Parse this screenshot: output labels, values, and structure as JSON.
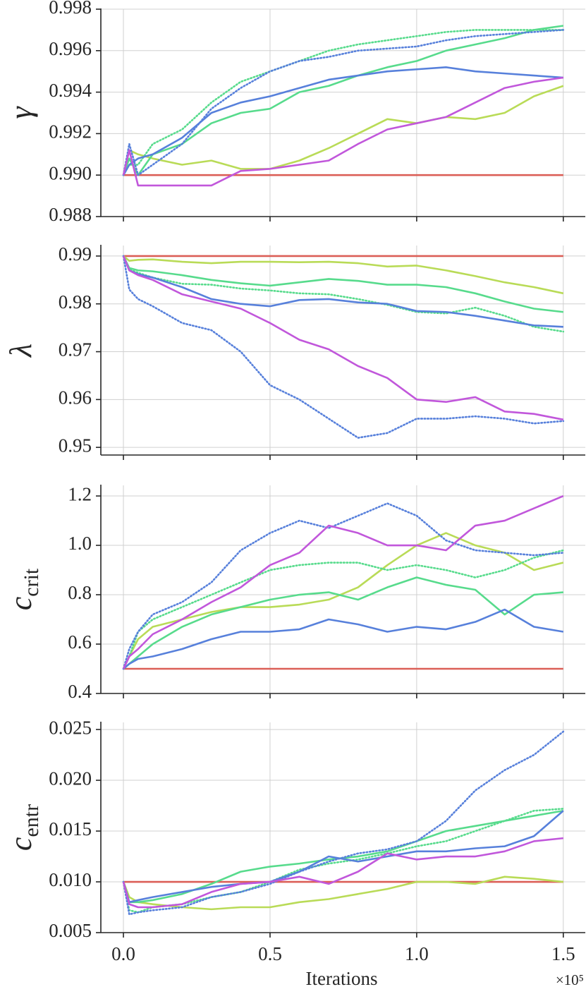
{
  "chart_data": [
    {
      "type": "line",
      "ylabel": "γ",
      "grid": true,
      "x": [
        0,
        0.02,
        0.05,
        0.1,
        0.2,
        0.3,
        0.4,
        0.5,
        0.6,
        0.7,
        0.8,
        0.9,
        1.0,
        1.1,
        1.2,
        1.3,
        1.4,
        1.5
      ],
      "xlim": [
        -0.077,
        1.575
      ],
      "xticks": [
        0,
        0.5,
        1,
        1.5
      ],
      "ylim": [
        0.988,
        0.998
      ],
      "yticks": [
        0.988,
        {
          "value": 0.99,
          "label": "0.990"
        },
        0.992,
        0.994,
        0.996,
        0.998
      ],
      "series": [
        {
          "color": "#db5f57",
          "linestyle": "solid",
          "values": [
            0.99,
            0.99,
            0.99,
            0.99,
            0.99,
            0.99,
            0.99,
            0.99,
            0.99,
            0.99,
            0.99,
            0.99,
            0.99,
            0.99,
            0.99,
            0.99,
            0.99,
            0.99
          ]
        },
        {
          "color": "#b9db57",
          "linestyle": "solid",
          "values": [
            0.99,
            0.9912,
            0.991,
            0.9908,
            0.9905,
            0.9907,
            0.9903,
            0.9903,
            0.9907,
            0.9913,
            0.992,
            0.9927,
            0.9925,
            0.9928,
            0.9927,
            0.993,
            0.9938,
            0.9943
          ]
        },
        {
          "color": "#57db8c",
          "linestyle": "solid",
          "values": [
            0.99,
            0.9908,
            0.99,
            0.991,
            0.9915,
            0.9925,
            0.993,
            0.9932,
            0.994,
            0.9943,
            0.9948,
            0.9952,
            0.9955,
            0.996,
            0.9963,
            0.9966,
            0.997,
            0.9972
          ]
        },
        {
          "color": "#57db8c",
          "linestyle": "dotted",
          "values": [
            0.99,
            0.9905,
            0.9905,
            0.9915,
            0.9922,
            0.9935,
            0.9945,
            0.995,
            0.9955,
            0.996,
            0.9963,
            0.9965,
            0.9967,
            0.9969,
            0.997,
            0.997,
            0.997,
            0.997
          ]
        },
        {
          "color": "#5780db",
          "linestyle": "solid",
          "values": [
            0.99,
            0.9905,
            0.9908,
            0.991,
            0.9918,
            0.993,
            0.9935,
            0.9938,
            0.9942,
            0.9946,
            0.9948,
            0.995,
            0.9951,
            0.9952,
            0.995,
            0.9949,
            0.9948,
            0.9947
          ]
        },
        {
          "color": "#5780db",
          "linestyle": "dotted",
          "values": [
            0.99,
            0.9915,
            0.99,
            0.9905,
            0.9915,
            0.9932,
            0.9942,
            0.995,
            0.9955,
            0.9957,
            0.996,
            0.9961,
            0.9962,
            0.9965,
            0.9967,
            0.9968,
            0.9969,
            0.997
          ]
        },
        {
          "color": "#c157db",
          "linestyle": "solid",
          "values": [
            0.99,
            0.9912,
            0.9895,
            0.9895,
            0.9895,
            0.9895,
            0.9902,
            0.9903,
            0.9905,
            0.9907,
            0.9915,
            0.9922,
            0.9925,
            0.9928,
            0.9935,
            0.9942,
            0.9945,
            0.9947
          ]
        }
      ]
    },
    {
      "type": "line",
      "ylabel": "λ",
      "grid": true,
      "x": [
        0,
        0.02,
        0.05,
        0.1,
        0.2,
        0.3,
        0.4,
        0.5,
        0.6,
        0.7,
        0.8,
        0.9,
        1.0,
        1.1,
        1.2,
        1.3,
        1.4,
        1.5
      ],
      "xlim": [
        -0.077,
        1.575
      ],
      "xticks": [
        0,
        0.5,
        1,
        1.5
      ],
      "ylim": [
        0.9484,
        0.9922
      ],
      "yticks": [
        0.95,
        0.96,
        0.97,
        0.98,
        0.99
      ],
      "series": [
        {
          "color": "#db5f57",
          "linestyle": "solid",
          "values": [
            0.99,
            0.99,
            0.99,
            0.99,
            0.99,
            0.99,
            0.99,
            0.99,
            0.99,
            0.99,
            0.99,
            0.99,
            0.99,
            0.99,
            0.99,
            0.99,
            0.99,
            0.99
          ]
        },
        {
          "color": "#b9db57",
          "linestyle": "solid",
          "values": [
            0.99,
            0.989,
            0.9892,
            0.9893,
            0.9888,
            0.9885,
            0.9888,
            0.9888,
            0.9887,
            0.9888,
            0.9885,
            0.9878,
            0.988,
            0.987,
            0.9858,
            0.9845,
            0.9835,
            0.9822
          ]
        },
        {
          "color": "#57db8c",
          "linestyle": "solid",
          "values": [
            0.99,
            0.9875,
            0.987,
            0.9868,
            0.986,
            0.985,
            0.9843,
            0.9838,
            0.9845,
            0.9852,
            0.9848,
            0.984,
            0.984,
            0.9835,
            0.9822,
            0.9805,
            0.979,
            0.9783
          ]
        },
        {
          "color": "#57db8c",
          "linestyle": "dotted",
          "values": [
            0.99,
            0.9872,
            0.9865,
            0.9855,
            0.9842,
            0.984,
            0.9832,
            0.9828,
            0.9822,
            0.982,
            0.981,
            0.9798,
            0.9783,
            0.978,
            0.9792,
            0.9775,
            0.9752,
            0.9742
          ]
        },
        {
          "color": "#5780db",
          "linestyle": "solid",
          "values": [
            0.99,
            0.987,
            0.9862,
            0.9855,
            0.9835,
            0.981,
            0.98,
            0.9795,
            0.9808,
            0.981,
            0.9803,
            0.98,
            0.9785,
            0.9783,
            0.9775,
            0.9765,
            0.9755,
            0.9752
          ]
        },
        {
          "color": "#5780db",
          "linestyle": "dotted",
          "values": [
            0.99,
            0.983,
            0.981,
            0.9795,
            0.976,
            0.9745,
            0.97,
            0.963,
            0.96,
            0.956,
            0.952,
            0.953,
            0.956,
            0.956,
            0.9565,
            0.956,
            0.955,
            0.9555
          ]
        },
        {
          "color": "#c157db",
          "linestyle": "solid",
          "values": [
            0.99,
            0.987,
            0.986,
            0.985,
            0.982,
            0.9805,
            0.979,
            0.976,
            0.9725,
            0.9705,
            0.967,
            0.9645,
            0.96,
            0.9595,
            0.9605,
            0.9575,
            0.957,
            0.9558
          ]
        }
      ]
    },
    {
      "type": "line",
      "ylabel": "c",
      "ylabel_sub": "crit",
      "grid": true,
      "x": [
        0,
        0.02,
        0.05,
        0.1,
        0.2,
        0.3,
        0.4,
        0.5,
        0.6,
        0.7,
        0.8,
        0.9,
        1.0,
        1.1,
        1.2,
        1.3,
        1.4,
        1.5
      ],
      "xlim": [
        -0.077,
        1.575
      ],
      "xticks": [
        0,
        0.5,
        1,
        1.5
      ],
      "ylim": [
        0.4,
        1.243
      ],
      "yticks": [
        0.4,
        0.6,
        0.8,
        {
          "value": 1,
          "label": "1.0"
        },
        1.2
      ],
      "series": [
        {
          "color": "#db5f57",
          "linestyle": "solid",
          "values": [
            0.5,
            0.5,
            0.5,
            0.5,
            0.5,
            0.5,
            0.5,
            0.5,
            0.5,
            0.5,
            0.5,
            0.5,
            0.5,
            0.5,
            0.5,
            0.5,
            0.5,
            0.5
          ]
        },
        {
          "color": "#b9db57",
          "linestyle": "solid",
          "values": [
            0.5,
            0.55,
            0.62,
            0.67,
            0.7,
            0.73,
            0.75,
            0.75,
            0.76,
            0.78,
            0.83,
            0.92,
            1.0,
            1.05,
            1.0,
            0.97,
            0.9,
            0.93
          ]
        },
        {
          "color": "#57db8c",
          "linestyle": "solid",
          "values": [
            0.5,
            0.52,
            0.55,
            0.6,
            0.67,
            0.72,
            0.75,
            0.78,
            0.8,
            0.81,
            0.78,
            0.83,
            0.87,
            0.84,
            0.82,
            0.72,
            0.8,
            0.81
          ]
        },
        {
          "color": "#57db8c",
          "linestyle": "dotted",
          "values": [
            0.5,
            0.55,
            0.65,
            0.7,
            0.75,
            0.8,
            0.85,
            0.9,
            0.92,
            0.93,
            0.93,
            0.9,
            0.92,
            0.9,
            0.87,
            0.9,
            0.95,
            0.98
          ]
        },
        {
          "color": "#5780db",
          "linestyle": "solid",
          "values": [
            0.5,
            0.52,
            0.54,
            0.55,
            0.58,
            0.62,
            0.65,
            0.65,
            0.66,
            0.7,
            0.68,
            0.65,
            0.67,
            0.66,
            0.69,
            0.74,
            0.67,
            0.65
          ]
        },
        {
          "color": "#5780db",
          "linestyle": "dotted",
          "values": [
            0.5,
            0.58,
            0.65,
            0.72,
            0.77,
            0.85,
            0.98,
            1.05,
            1.1,
            1.07,
            1.12,
            1.17,
            1.12,
            1.02,
            0.98,
            0.97,
            0.96,
            0.97
          ]
        },
        {
          "color": "#c157db",
          "linestyle": "solid",
          "values": [
            0.5,
            0.55,
            0.58,
            0.64,
            0.7,
            0.77,
            0.83,
            0.92,
            0.97,
            1.08,
            1.05,
            1.0,
            1.0,
            0.98,
            1.08,
            1.1,
            1.15,
            1.2
          ]
        }
      ]
    },
    {
      "type": "line",
      "ylabel": "c",
      "ylabel_sub": "entr",
      "grid": true,
      "xlabel": "Iterations",
      "x_offset_label": "×10⁵",
      "x": [
        0,
        0.02,
        0.05,
        0.1,
        0.2,
        0.3,
        0.4,
        0.5,
        0.6,
        0.7,
        0.8,
        0.9,
        1.0,
        1.1,
        1.2,
        1.3,
        1.4,
        1.5
      ],
      "xlim": [
        -0.077,
        1.575
      ],
      "xticks": [
        {
          "value": 0,
          "label": "0.0"
        },
        0.5,
        {
          "value": 1,
          "label": "1.0"
        },
        1.5
      ],
      "ylim": [
        0.005,
        0.0257
      ],
      "yticks": [
        0.005,
        {
          "value": 0.01,
          "label": "0.010"
        },
        0.015,
        {
          "value": 0.02,
          "label": "0.020"
        },
        0.025
      ],
      "series": [
        {
          "color": "#db5f57",
          "linestyle": "solid",
          "values": [
            0.01,
            0.01,
            0.01,
            0.01,
            0.01,
            0.01,
            0.01,
            0.01,
            0.01,
            0.01,
            0.01,
            0.01,
            0.01,
            0.01,
            0.01,
            0.01,
            0.01,
            0.01
          ]
        },
        {
          "color": "#b9db57",
          "linestyle": "solid",
          "values": [
            0.01,
            0.0085,
            0.008,
            0.0078,
            0.0075,
            0.0073,
            0.0075,
            0.0075,
            0.008,
            0.0083,
            0.0088,
            0.0093,
            0.01,
            0.01,
            0.0098,
            0.0105,
            0.0103,
            0.01
          ]
        },
        {
          "color": "#57db8c",
          "linestyle": "solid",
          "values": [
            0.01,
            0.008,
            0.008,
            0.0082,
            0.0088,
            0.0098,
            0.011,
            0.0115,
            0.0118,
            0.0122,
            0.0125,
            0.013,
            0.014,
            0.015,
            0.0155,
            0.016,
            0.0165,
            0.017
          ]
        },
        {
          "color": "#57db8c",
          "linestyle": "dotted",
          "values": [
            0.01,
            0.0072,
            0.007,
            0.0075,
            0.0078,
            0.0085,
            0.009,
            0.01,
            0.0112,
            0.0118,
            0.0122,
            0.0128,
            0.0135,
            0.014,
            0.015,
            0.016,
            0.017,
            0.0172
          ]
        },
        {
          "color": "#5780db",
          "linestyle": "solid",
          "values": [
            0.01,
            0.008,
            0.0082,
            0.0085,
            0.009,
            0.0095,
            0.0098,
            0.01,
            0.011,
            0.0125,
            0.012,
            0.0125,
            0.013,
            0.013,
            0.0133,
            0.0135,
            0.0145,
            0.017
          ]
        },
        {
          "color": "#5780db",
          "linestyle": "dotted",
          "values": [
            0.01,
            0.0068,
            0.007,
            0.0072,
            0.0075,
            0.0085,
            0.009,
            0.0098,
            0.011,
            0.012,
            0.0128,
            0.0132,
            0.014,
            0.016,
            0.019,
            0.021,
            0.0225,
            0.0248
          ]
        },
        {
          "color": "#c157db",
          "linestyle": "solid",
          "values": [
            0.01,
            0.0078,
            0.0075,
            0.0075,
            0.0078,
            0.009,
            0.0098,
            0.01,
            0.0105,
            0.0098,
            0.011,
            0.0128,
            0.0122,
            0.0125,
            0.0125,
            0.013,
            0.014,
            0.0143
          ]
        }
      ]
    }
  ]
}
